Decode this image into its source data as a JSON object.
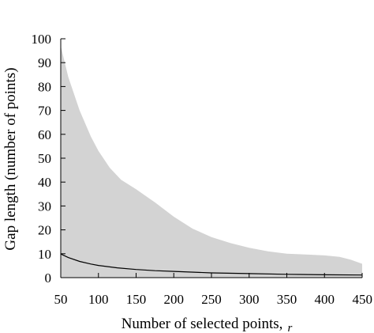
{
  "chart_data": {
    "type": "area",
    "title": "",
    "xlabel": "Number of selected points,",
    "xlabel_variable": "r",
    "ylabel": "Gap length (number of points)",
    "xlim": [
      50,
      450
    ],
    "ylim": [
      0,
      100
    ],
    "x_ticks": [
      50,
      100,
      150,
      200,
      250,
      300,
      350,
      400,
      450
    ],
    "y_ticks": [
      0,
      10,
      20,
      30,
      40,
      50,
      60,
      70,
      80,
      90,
      100
    ],
    "x_tick_labels": [
      "50",
      "100",
      "150",
      "200",
      "250",
      "300",
      "350",
      "400",
      "450"
    ],
    "y_tick_labels": [
      "0",
      "10",
      "20",
      "30",
      "40",
      "50",
      "60",
      "70",
      "80",
      "90",
      "100"
    ],
    "grid": false,
    "series": [
      {
        "kind": "band",
        "color": "#d3d3d3",
        "x": [
          50,
          60,
          75,
          90,
          100,
          115,
          130,
          150,
          175,
          200,
          225,
          250,
          275,
          300,
          325,
          350,
          375,
          400,
          420,
          435,
          450
        ],
        "upper": [
          97,
          84,
          70,
          59,
          53,
          46,
          41,
          37,
          31.5,
          25.5,
          20.5,
          17,
          14.5,
          12.5,
          11,
          10,
          9.7,
          9.3,
          8.7,
          7.5,
          5.8
        ],
        "lower": [
          0,
          0,
          0,
          0,
          0,
          0,
          0,
          0,
          0,
          0,
          0,
          0,
          0,
          0,
          0,
          0,
          0,
          0,
          0,
          0,
          0
        ]
      },
      {
        "kind": "line",
        "color": "#000000",
        "x": [
          50,
          60,
          75,
          90,
          100,
          125,
          150,
          175,
          200,
          250,
          300,
          350,
          400,
          450
        ],
        "values": [
          9.9,
          8.4,
          6.8,
          5.7,
          5.1,
          4.1,
          3.4,
          2.9,
          2.6,
          2.0,
          1.7,
          1.4,
          1.2,
          1.1
        ]
      }
    ]
  }
}
